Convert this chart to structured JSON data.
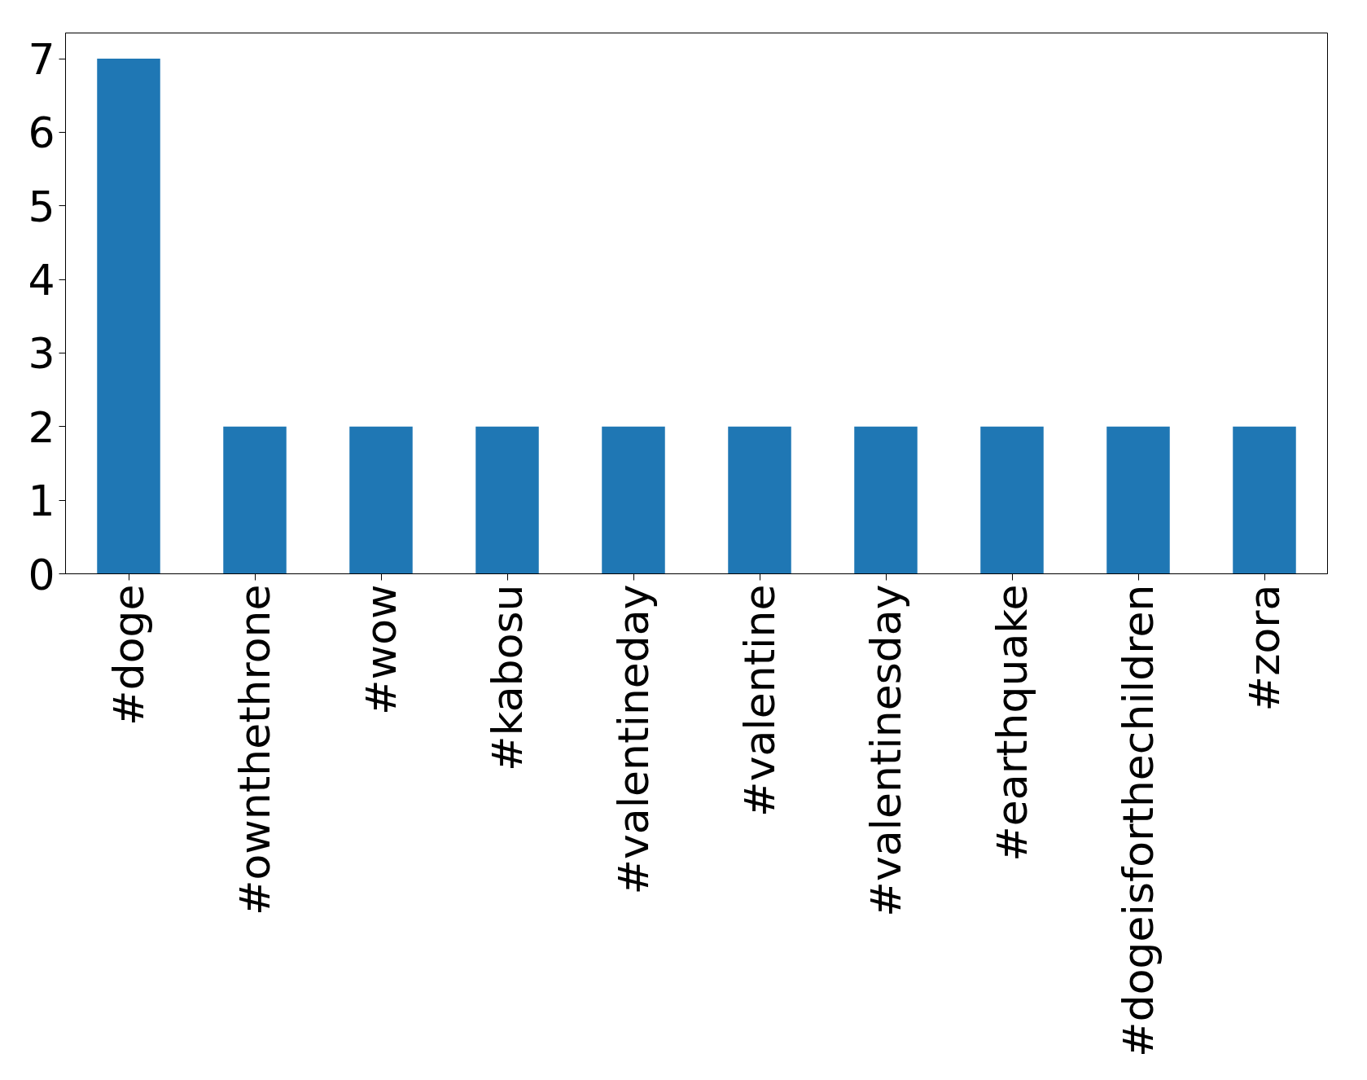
{
  "chart_data": {
    "type": "bar",
    "categories": [
      "#doge",
      "#ownthethrone",
      "#wow",
      "#kabosu",
      "#valentineday",
      "#valentine",
      "#valentinesday",
      "#earthquake",
      "#dogeisforthechildren",
      "#zora"
    ],
    "values": [
      7,
      2,
      2,
      2,
      2,
      2,
      2,
      2,
      2,
      2
    ],
    "color": "#1f77b4",
    "ylim": [
      0,
      7.35
    ],
    "yticks": [
      0,
      1,
      2,
      3,
      4,
      5,
      6,
      7
    ],
    "grid": false
  }
}
